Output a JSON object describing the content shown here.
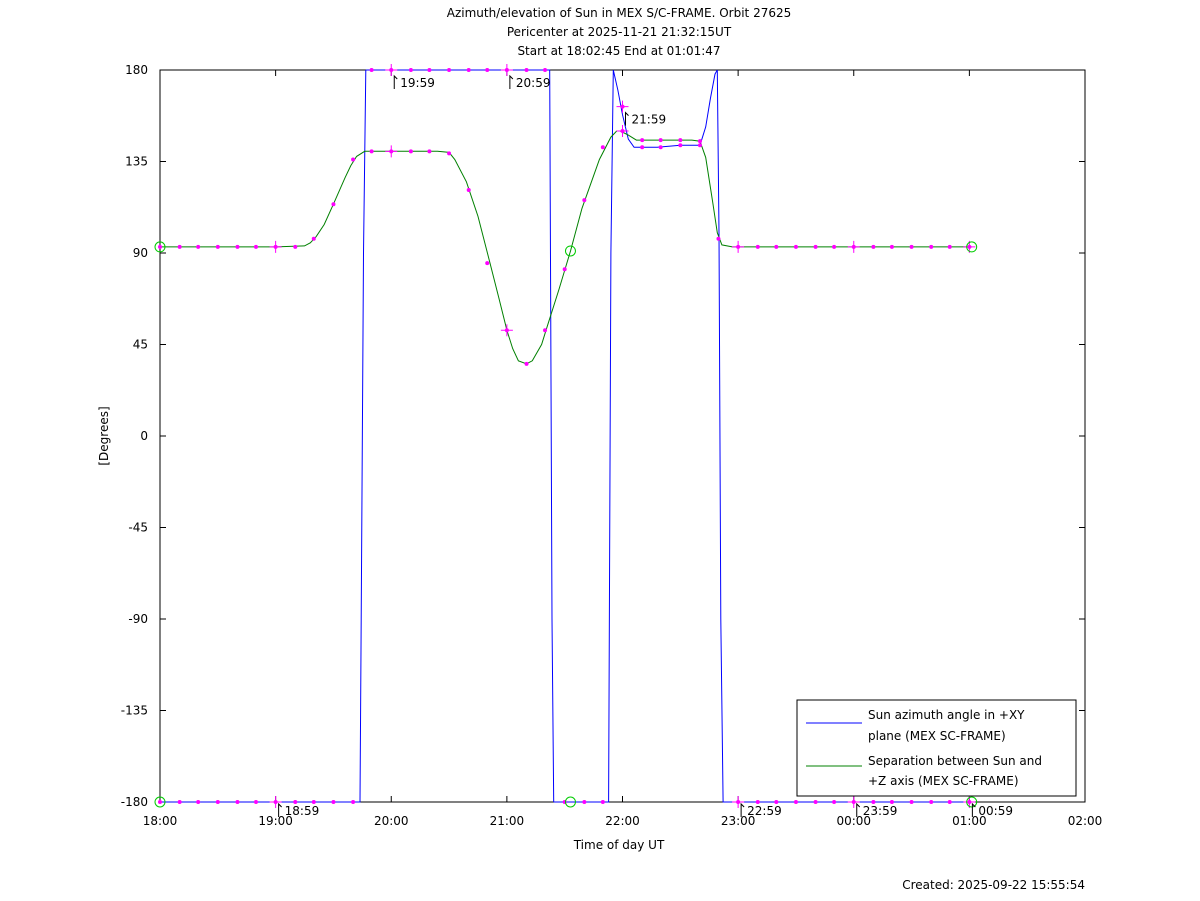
{
  "chart_data": {
    "type": "line",
    "title_lines": [
      "Azimuth/elevation of Sun in MEX S/C-FRAME.  Orbit 27625",
      "Pericenter at 2025-11-21 21:32:15UT",
      "Start at 18:02:45 End at 01:01:47"
    ],
    "xlabel": "Time of day UT",
    "ylabel": "[Degrees]",
    "xlim": [
      18.0,
      26.0
    ],
    "ylim": [
      -180,
      180
    ],
    "x_ticks": [
      {
        "v": 18,
        "label": "18:00"
      },
      {
        "v": 19,
        "label": "19:00"
      },
      {
        "v": 20,
        "label": "20:00"
      },
      {
        "v": 21,
        "label": "21:00"
      },
      {
        "v": 22,
        "label": "22:00"
      },
      {
        "v": 23,
        "label": "23:00"
      },
      {
        "v": 24,
        "label": "00:00"
      },
      {
        "v": 25,
        "label": "01:00"
      },
      {
        "v": 26,
        "label": "02:00"
      }
    ],
    "y_ticks": [
      {
        "v": 180,
        "label": "180"
      },
      {
        "v": 135,
        "label": "135"
      },
      {
        "v": 90,
        "label": "90"
      },
      {
        "v": 45,
        "label": "45"
      },
      {
        "v": 0,
        "label": "0"
      },
      {
        "v": -45,
        "label": "-45"
      },
      {
        "v": -90,
        "label": "-90"
      },
      {
        "v": -135,
        "label": "-135"
      },
      {
        "v": -180,
        "label": "-180"
      }
    ],
    "series": [
      {
        "name_lines": [
          "Sun azimuth angle in +XY",
          "plane (MEX SC-FRAME)"
        ],
        "color": "#0000ff",
        "segments": [
          [
            [
              18.0,
              -180
            ],
            [
              19.73,
              -180
            ],
            [
              19.74,
              -90
            ],
            [
              19.76,
              90
            ],
            [
              19.78,
              180
            ]
          ],
          [
            [
              19.78,
              180
            ],
            [
              21.37,
              180
            ],
            [
              21.39,
              -90
            ],
            [
              21.405,
              -180
            ]
          ],
          [
            [
              21.405,
              -180
            ],
            [
              21.88,
              -180
            ],
            [
              21.9,
              90
            ],
            [
              21.92,
              180
            ],
            [
              21.96,
              170
            ],
            [
              22.0,
              158
            ],
            [
              22.05,
              146
            ],
            [
              22.1,
              142
            ],
            [
              22.3,
              142
            ],
            [
              22.5,
              143
            ],
            [
              22.67,
              143
            ],
            [
              22.72,
              152
            ],
            [
              22.76,
              166
            ],
            [
              22.8,
              178
            ],
            [
              22.82,
              180
            ]
          ],
          [
            [
              22.82,
              180
            ],
            [
              22.835,
              100
            ],
            [
              22.85,
              -90
            ],
            [
              22.87,
              -180
            ],
            [
              25.02,
              -180
            ]
          ]
        ]
      },
      {
        "name_lines": [
          "Separation between Sun and",
          "+Z axis (MEX SC-FRAME)"
        ],
        "color": "#008000",
        "points": [
          [
            18.0,
            93
          ],
          [
            18.8,
            93
          ],
          [
            19.0,
            93
          ],
          [
            19.25,
            93.5
          ],
          [
            19.3,
            95
          ],
          [
            19.35,
            98
          ],
          [
            19.42,
            104
          ],
          [
            19.5,
            114
          ],
          [
            19.6,
            127
          ],
          [
            19.65,
            133
          ],
          [
            19.7,
            137.5
          ],
          [
            19.77,
            140
          ],
          [
            19.85,
            140
          ],
          [
            20.4,
            140
          ],
          [
            20.5,
            139.5
          ],
          [
            20.55,
            136
          ],
          [
            20.65,
            125
          ],
          [
            20.75,
            108
          ],
          [
            20.85,
            86
          ],
          [
            20.93,
            68
          ],
          [
            21.0,
            52
          ],
          [
            21.05,
            43
          ],
          [
            21.1,
            37
          ],
          [
            21.17,
            35.5
          ],
          [
            21.22,
            37
          ],
          [
            21.3,
            45
          ],
          [
            21.35,
            54
          ],
          [
            21.45,
            72
          ],
          [
            21.55,
            91
          ],
          [
            21.65,
            112
          ],
          [
            21.8,
            136
          ],
          [
            21.9,
            147
          ],
          [
            21.95,
            150
          ],
          [
            21.98,
            150
          ],
          [
            22.05,
            148
          ],
          [
            22.12,
            145.5
          ],
          [
            22.6,
            145.5
          ],
          [
            22.67,
            145
          ],
          [
            22.72,
            137
          ],
          [
            22.78,
            115
          ],
          [
            22.82,
            100
          ],
          [
            22.86,
            94
          ],
          [
            22.95,
            93
          ],
          [
            25.02,
            93
          ]
        ]
      }
    ],
    "marker_color": "#ff00ff",
    "azimuth_dots": [
      [
        18.0,
        -180
      ],
      [
        18.17,
        -180
      ],
      [
        18.33,
        -180
      ],
      [
        18.5,
        -180
      ],
      [
        18.67,
        -180
      ],
      [
        18.83,
        -180
      ],
      [
        19.0,
        -180
      ],
      [
        19.17,
        -180
      ],
      [
        19.33,
        -180
      ],
      [
        19.5,
        -180
      ],
      [
        19.67,
        -180
      ],
      [
        19.83,
        180
      ],
      [
        20.0,
        180
      ],
      [
        20.17,
        180
      ],
      [
        20.33,
        180
      ],
      [
        20.5,
        180
      ],
      [
        20.67,
        180
      ],
      [
        20.83,
        180
      ],
      [
        21.0,
        180
      ],
      [
        21.17,
        180
      ],
      [
        21.33,
        180
      ],
      [
        21.5,
        -180
      ],
      [
        21.67,
        -180
      ],
      [
        21.83,
        -180
      ],
      [
        22.0,
        162
      ],
      [
        22.17,
        142
      ],
      [
        22.33,
        142
      ],
      [
        22.5,
        143
      ],
      [
        22.67,
        143
      ],
      [
        23.0,
        -180
      ],
      [
        23.17,
        -180
      ],
      [
        23.33,
        -180
      ],
      [
        23.5,
        -180
      ],
      [
        23.67,
        -180
      ],
      [
        23.83,
        -180
      ],
      [
        24.0,
        -180
      ],
      [
        24.17,
        -180
      ],
      [
        24.33,
        -180
      ],
      [
        24.5,
        -180
      ],
      [
        24.67,
        -180
      ],
      [
        24.83,
        -180
      ],
      [
        25.0,
        -180
      ]
    ],
    "separation_dots": [
      [
        18.0,
        93
      ],
      [
        18.17,
        93
      ],
      [
        18.33,
        93
      ],
      [
        18.5,
        93
      ],
      [
        18.67,
        93
      ],
      [
        18.83,
        93
      ],
      [
        19.0,
        93
      ],
      [
        19.17,
        93
      ],
      [
        19.33,
        97
      ],
      [
        19.5,
        114
      ],
      [
        19.67,
        136
      ],
      [
        19.83,
        140
      ],
      [
        20.0,
        140
      ],
      [
        20.17,
        140
      ],
      [
        20.33,
        140
      ],
      [
        20.5,
        139
      ],
      [
        20.67,
        121
      ],
      [
        20.83,
        85
      ],
      [
        21.0,
        52
      ],
      [
        21.17,
        35.5
      ],
      [
        21.33,
        52
      ],
      [
        21.5,
        82
      ],
      [
        21.67,
        116
      ],
      [
        21.83,
        142
      ],
      [
        22.0,
        150
      ],
      [
        22.17,
        145.5
      ],
      [
        22.33,
        145.5
      ],
      [
        22.5,
        145.5
      ],
      [
        22.67,
        145
      ],
      [
        22.83,
        97
      ],
      [
        23.0,
        93
      ],
      [
        23.17,
        93
      ],
      [
        23.33,
        93
      ],
      [
        23.5,
        93
      ],
      [
        23.67,
        93
      ],
      [
        23.83,
        93
      ],
      [
        24.0,
        93
      ],
      [
        24.17,
        93
      ],
      [
        24.33,
        93
      ],
      [
        24.5,
        93
      ],
      [
        24.67,
        93
      ],
      [
        24.83,
        93
      ],
      [
        25.0,
        93
      ]
    ],
    "hour_crosses": [
      [
        19.0,
        -180
      ],
      [
        20.0,
        180
      ],
      [
        21.0,
        180
      ],
      [
        22.0,
        162
      ],
      [
        23.0,
        -180
      ],
      [
        24.0,
        -180
      ],
      [
        25.0,
        -180
      ],
      [
        19.0,
        93
      ],
      [
        20.0,
        140
      ],
      [
        21.0,
        52
      ],
      [
        22.0,
        150
      ],
      [
        23.0,
        93
      ],
      [
        24.0,
        93
      ],
      [
        25.0,
        93
      ]
    ],
    "circle_color": "#00cc00",
    "circles": [
      [
        18.0,
        -180
      ],
      [
        18.0,
        93
      ],
      [
        21.55,
        -180
      ],
      [
        21.55,
        91
      ],
      [
        25.02,
        -180
      ],
      [
        25.02,
        93
      ]
    ],
    "hour_labels": [
      {
        "x": 19.0,
        "y": -180,
        "label": "18:59"
      },
      {
        "x": 20.0,
        "y": 180,
        "label": "19:59"
      },
      {
        "x": 21.0,
        "y": 180,
        "label": "20:59"
      },
      {
        "x": 22.0,
        "y": 162,
        "label": "21:59"
      },
      {
        "x": 23.0,
        "y": -180,
        "label": "22:59"
      },
      {
        "x": 24.0,
        "y": -180,
        "label": "23:59"
      },
      {
        "x": 25.0,
        "y": -180,
        "label": "00:59"
      }
    ],
    "legend_placement": "bottom-right",
    "footer": "Created: 2025-09-22 15:55:54"
  }
}
